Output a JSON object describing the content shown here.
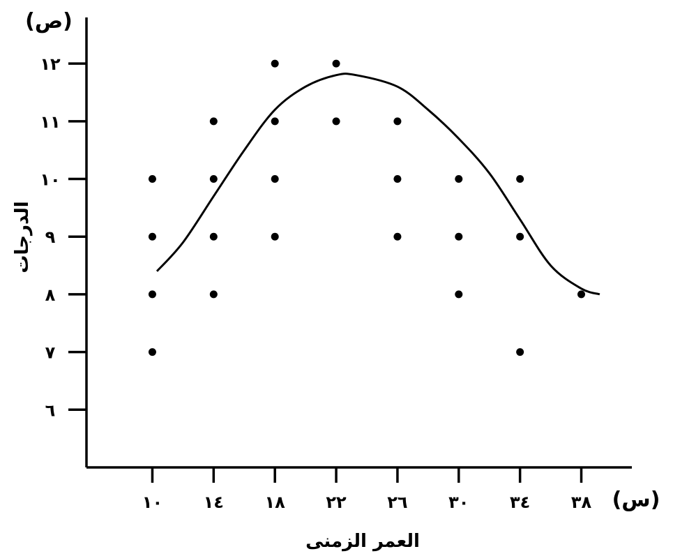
{
  "chart_data": {
    "type": "scatter",
    "xlabel": "العمر الزمنى",
    "ylabel": "الدرجات",
    "x_symbol": "(س)",
    "y_symbol": "(ص)",
    "x_ticks": [
      {
        "value": 10,
        "label": "١٠"
      },
      {
        "value": 14,
        "label": "١٤"
      },
      {
        "value": 18,
        "label": "١٨"
      },
      {
        "value": 22,
        "label": "٢٢"
      },
      {
        "value": 26,
        "label": "٢٦"
      },
      {
        "value": 30,
        "label": "٣٠"
      },
      {
        "value": 34,
        "label": "٣٤"
      },
      {
        "value": 38,
        "label": "٣٨"
      }
    ],
    "y_ticks": [
      {
        "value": 6,
        "label": "٦"
      },
      {
        "value": 7,
        "label": "٧"
      },
      {
        "value": 8,
        "label": "٨"
      },
      {
        "value": 9,
        "label": "٩"
      },
      {
        "value": 10,
        "label": "١٠"
      },
      {
        "value": 11,
        "label": "١١"
      },
      {
        "value": 12,
        "label": "١٢"
      }
    ],
    "xlim": [
      5.7,
      41.3
    ],
    "ylim": [
      5,
      12.8
    ],
    "grid": false,
    "points": [
      {
        "x": 10,
        "y": 7
      },
      {
        "x": 10,
        "y": 8
      },
      {
        "x": 10,
        "y": 9
      },
      {
        "x": 10,
        "y": 10
      },
      {
        "x": 14,
        "y": 8
      },
      {
        "x": 14,
        "y": 9
      },
      {
        "x": 14,
        "y": 10
      },
      {
        "x": 14,
        "y": 11
      },
      {
        "x": 18,
        "y": 9
      },
      {
        "x": 18,
        "y": 10
      },
      {
        "x": 18,
        "y": 11
      },
      {
        "x": 18,
        "y": 12
      },
      {
        "x": 22,
        "y": 11
      },
      {
        "x": 22,
        "y": 12
      },
      {
        "x": 26,
        "y": 9
      },
      {
        "x": 26,
        "y": 10
      },
      {
        "x": 26,
        "y": 11
      },
      {
        "x": 30,
        "y": 8
      },
      {
        "x": 30,
        "y": 9
      },
      {
        "x": 30,
        "y": 10
      },
      {
        "x": 34,
        "y": 7
      },
      {
        "x": 34,
        "y": 9
      },
      {
        "x": 34,
        "y": 10
      },
      {
        "x": 38,
        "y": 8
      }
    ],
    "curve": [
      {
        "x": 10.3,
        "y": 8.4
      },
      {
        "x": 12,
        "y": 8.9
      },
      {
        "x": 14,
        "y": 9.7
      },
      {
        "x": 16,
        "y": 10.5
      },
      {
        "x": 18,
        "y": 11.2
      },
      {
        "x": 20,
        "y": 11.6
      },
      {
        "x": 22,
        "y": 11.8
      },
      {
        "x": 23.3,
        "y": 11.8
      },
      {
        "x": 26,
        "y": 11.6
      },
      {
        "x": 28,
        "y": 11.2
      },
      {
        "x": 30,
        "y": 10.7
      },
      {
        "x": 32,
        "y": 10.1
      },
      {
        "x": 34,
        "y": 9.3
      },
      {
        "x": 36,
        "y": 8.5
      },
      {
        "x": 38,
        "y": 8.1
      },
      {
        "x": 39.2,
        "y": 8.0
      }
    ]
  }
}
